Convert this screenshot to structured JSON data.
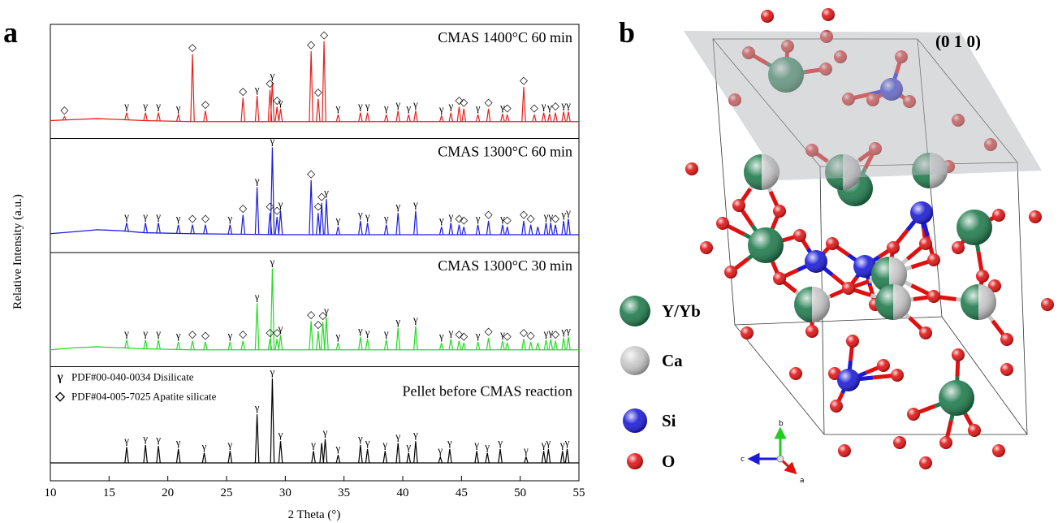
{
  "chart_data": {
    "type": "line",
    "panel_label": "a",
    "x_label": "2 Theta (°)",
    "y_label": "Relative Intensity (a.u.)",
    "xlim": [
      10,
      55
    ],
    "xticks": [
      10,
      15,
      20,
      25,
      30,
      35,
      40,
      45,
      50,
      55
    ],
    "legend": [
      {
        "symbol": "γ",
        "text": "PDF#00-040-0034 Disilicate"
      },
      {
        "symbol": "◇",
        "text": "PDF#04-005-7025 Apatite silicate"
      }
    ],
    "panels": [
      {
        "name": "CMAS 1400°C 60 min",
        "color": "#e8211c",
        "ylim": [
          -10,
          105
        ],
        "background": {
          "x": [
            10,
            12,
            14,
            16,
            18,
            22,
            30,
            40,
            55
          ],
          "values": [
            8,
            9,
            10,
            9,
            8,
            7,
            7,
            7,
            7
          ]
        },
        "peaks": {
          "x": [
            11.2,
            16.5,
            18.1,
            19.2,
            20.9,
            22.1,
            23.2,
            26.4,
            27.6,
            28.7,
            28.9,
            29.3,
            29.6,
            32.2,
            32.8,
            33.3,
            34.5,
            36.4,
            37.0,
            38.6,
            39.6,
            40.5,
            41.1,
            43.3,
            44.1,
            44.8,
            45.2,
            46.4,
            47.3,
            48.5,
            48.9,
            50.3,
            51.2,
            52.0,
            52.5,
            53.0,
            53.7,
            54.1
          ],
          "values": [
            12,
            16,
            16,
            16,
            14,
            75,
            18,
            31,
            33,
            39,
            47,
            22,
            20,
            78,
            30,
            88,
            14,
            16,
            16,
            14,
            18,
            14,
            18,
            13,
            16,
            22,
            20,
            14,
            20,
            15,
            14,
            42,
            14,
            16,
            15,
            16,
            17,
            17
          ]
        },
        "markers": [
          {
            "x": 11.2,
            "label": "◇"
          },
          {
            "x": 16.5,
            "label": "γ"
          },
          {
            "x": 18.1,
            "label": "γ"
          },
          {
            "x": 19.2,
            "label": "γ"
          },
          {
            "x": 20.9,
            "label": "γ"
          },
          {
            "x": 22.1,
            "label": "◇"
          },
          {
            "x": 23.2,
            "label": "◇"
          },
          {
            "x": 26.4,
            "label": "◇"
          },
          {
            "x": 27.6,
            "label": "γ"
          },
          {
            "x": 28.7,
            "label": "◇"
          },
          {
            "x": 28.9,
            "label": "γ"
          },
          {
            "x": 29.3,
            "label": "◇"
          },
          {
            "x": 29.6,
            "label": "γ"
          },
          {
            "x": 32.2,
            "label": "◇"
          },
          {
            "x": 32.8,
            "label": "◇"
          },
          {
            "x": 33.3,
            "label": "◇"
          },
          {
            "x": 34.5,
            "label": "γ"
          },
          {
            "x": 36.4,
            "label": "γ"
          },
          {
            "x": 37.0,
            "label": "γ"
          },
          {
            "x": 38.6,
            "label": "γ"
          },
          {
            "x": 39.6,
            "label": "γ"
          },
          {
            "x": 40.5,
            "label": "γ"
          },
          {
            "x": 41.1,
            "label": "γ"
          },
          {
            "x": 43.3,
            "label": "γ"
          },
          {
            "x": 44.1,
            "label": "γ"
          },
          {
            "x": 44.8,
            "label": "◇"
          },
          {
            "x": 45.2,
            "label": "◇"
          },
          {
            "x": 46.4,
            "label": "γ"
          },
          {
            "x": 47.3,
            "label": "◇"
          },
          {
            "x": 48.5,
            "label": "γ"
          },
          {
            "x": 48.9,
            "label": "◇"
          },
          {
            "x": 50.3,
            "label": "◇"
          },
          {
            "x": 51.2,
            "label": "◇"
          },
          {
            "x": 52.0,
            "label": "γ"
          },
          {
            "x": 52.5,
            "label": "γ"
          },
          {
            "x": 53.0,
            "label": "◇"
          },
          {
            "x": 53.7,
            "label": "γ"
          },
          {
            "x": 54.1,
            "label": "γ"
          }
        ]
      },
      {
        "name": "CMAS 1300°C 60 min",
        "color": "#1c1ce0",
        "ylim": [
          -10,
          105
        ],
        "background": {
          "x": [
            10,
            12,
            14,
            16,
            18,
            22,
            30,
            40,
            55
          ],
          "values": [
            9,
            11,
            13,
            12,
            10,
            9,
            8,
            8,
            8
          ]
        },
        "peaks": {
          "x": [
            16.5,
            18.1,
            19.2,
            20.9,
            22.1,
            23.2,
            25.3,
            26.4,
            27.6,
            28.7,
            28.9,
            29.3,
            29.6,
            32.2,
            32.8,
            33.1,
            33.5,
            34.5,
            36.4,
            37.0,
            38.6,
            39.6,
            41.1,
            43.3,
            44.1,
            44.8,
            45.2,
            46.4,
            47.3,
            48.5,
            48.9,
            50.3,
            50.9,
            51.5,
            52.2,
            52.6,
            53.0,
            53.7,
            54.1
          ],
          "values": [
            20,
            20,
            20,
            18,
            18,
            18,
            18,
            28,
            56,
            30,
            96,
            26,
            32,
            63,
            30,
            40,
            44,
            16,
            22,
            20,
            18,
            30,
            32,
            16,
            20,
            18,
            16,
            18,
            22,
            18,
            16,
            22,
            18,
            16,
            20,
            20,
            18,
            22,
            24
          ]
        },
        "markers": [
          {
            "x": 16.5,
            "label": "γ"
          },
          {
            "x": 18.1,
            "label": "γ"
          },
          {
            "x": 19.2,
            "label": "γ"
          },
          {
            "x": 20.9,
            "label": "γ"
          },
          {
            "x": 22.1,
            "label": "◇"
          },
          {
            "x": 23.2,
            "label": "◇"
          },
          {
            "x": 25.3,
            "label": "γ"
          },
          {
            "x": 26.4,
            "label": "◇"
          },
          {
            "x": 27.6,
            "label": "γ"
          },
          {
            "x": 28.7,
            "label": "◇"
          },
          {
            "x": 28.9,
            "label": "γ"
          },
          {
            "x": 29.3,
            "label": "◇"
          },
          {
            "x": 29.6,
            "label": "γ"
          },
          {
            "x": 32.2,
            "label": "◇"
          },
          {
            "x": 32.8,
            "label": "◇"
          },
          {
            "x": 33.1,
            "label": "◇"
          },
          {
            "x": 33.5,
            "label": "γ"
          },
          {
            "x": 34.5,
            "label": "γ"
          },
          {
            "x": 36.4,
            "label": "γ"
          },
          {
            "x": 37.0,
            "label": "γ"
          },
          {
            "x": 38.6,
            "label": "γ"
          },
          {
            "x": 39.6,
            "label": "γ"
          },
          {
            "x": 41.1,
            "label": "γ"
          },
          {
            "x": 43.3,
            "label": "γ"
          },
          {
            "x": 44.1,
            "label": "γ"
          },
          {
            "x": 44.8,
            "label": "◇"
          },
          {
            "x": 45.2,
            "label": "◇"
          },
          {
            "x": 46.4,
            "label": "γ"
          },
          {
            "x": 47.3,
            "label": "◇"
          },
          {
            "x": 48.5,
            "label": "γ"
          },
          {
            "x": 48.9,
            "label": "◇"
          },
          {
            "x": 50.3,
            "label": "◇"
          },
          {
            "x": 50.9,
            "label": "◇"
          },
          {
            "x": 52.2,
            "label": "γ"
          },
          {
            "x": 52.6,
            "label": "γ"
          },
          {
            "x": 53.0,
            "label": "◇"
          },
          {
            "x": 53.7,
            "label": "γ"
          },
          {
            "x": 54.1,
            "label": "γ"
          }
        ]
      },
      {
        "name": "CMAS 1300°C 30 min",
        "color": "#22dd22",
        "ylim": [
          -10,
          105
        ],
        "background": {
          "x": [
            10,
            12,
            14,
            16,
            18,
            22,
            30,
            40,
            55
          ],
          "values": [
            7,
            9,
            10,
            9,
            8,
            7,
            7,
            7,
            7
          ]
        },
        "peaks": {
          "x": [
            16.5,
            18.1,
            19.2,
            20.9,
            22.1,
            23.2,
            25.3,
            26.4,
            27.6,
            28.7,
            28.9,
            29.3,
            29.6,
            32.2,
            32.8,
            33.2,
            33.5,
            34.5,
            36.4,
            37.0,
            38.6,
            39.6,
            41.1,
            43.3,
            44.1,
            44.8,
            45.2,
            46.4,
            47.3,
            48.5,
            48.9,
            50.3,
            50.9,
            51.5,
            52.2,
            52.6,
            53.0,
            53.7,
            54.1
          ],
          "values": [
            17,
            17,
            17,
            15,
            16,
            15,
            15,
            16,
            54,
            18,
            89,
            18,
            22,
            36,
            26,
            35,
            40,
            14,
            20,
            18,
            17,
            29,
            31,
            14,
            18,
            16,
            14,
            15,
            19,
            16,
            14,
            18,
            15,
            14,
            17,
            18,
            16,
            19,
            20
          ]
        },
        "markers": [
          {
            "x": 16.5,
            "label": "γ"
          },
          {
            "x": 18.1,
            "label": "γ"
          },
          {
            "x": 19.2,
            "label": "γ"
          },
          {
            "x": 20.9,
            "label": "γ"
          },
          {
            "x": 22.1,
            "label": "◇"
          },
          {
            "x": 23.2,
            "label": "◇"
          },
          {
            "x": 25.3,
            "label": "γ"
          },
          {
            "x": 26.4,
            "label": "◇"
          },
          {
            "x": 27.6,
            "label": "γ"
          },
          {
            "x": 28.7,
            "label": "◇"
          },
          {
            "x": 28.9,
            "label": "γ"
          },
          {
            "x": 29.3,
            "label": "◇"
          },
          {
            "x": 29.6,
            "label": "γ"
          },
          {
            "x": 32.2,
            "label": "◇"
          },
          {
            "x": 32.8,
            "label": "◇"
          },
          {
            "x": 33.2,
            "label": "◇"
          },
          {
            "x": 33.5,
            "label": "γ"
          },
          {
            "x": 34.5,
            "label": "γ"
          },
          {
            "x": 36.4,
            "label": "γ"
          },
          {
            "x": 37.0,
            "label": "γ"
          },
          {
            "x": 38.6,
            "label": "γ"
          },
          {
            "x": 39.6,
            "label": "γ"
          },
          {
            "x": 41.1,
            "label": "γ"
          },
          {
            "x": 43.3,
            "label": "γ"
          },
          {
            "x": 44.1,
            "label": "γ"
          },
          {
            "x": 44.8,
            "label": "◇"
          },
          {
            "x": 45.2,
            "label": "◇"
          },
          {
            "x": 46.4,
            "label": "γ"
          },
          {
            "x": 47.3,
            "label": "◇"
          },
          {
            "x": 48.5,
            "label": "γ"
          },
          {
            "x": 48.9,
            "label": "◇"
          },
          {
            "x": 50.3,
            "label": "◇"
          },
          {
            "x": 50.9,
            "label": "◇"
          },
          {
            "x": 52.2,
            "label": "γ"
          },
          {
            "x": 52.6,
            "label": "γ"
          },
          {
            "x": 53.0,
            "label": "◇"
          },
          {
            "x": 53.7,
            "label": "γ"
          },
          {
            "x": 54.1,
            "label": "γ"
          }
        ]
      },
      {
        "name": "Pellet before CMAS reaction",
        "color": "#000000",
        "ylim": [
          -10,
          105
        ],
        "background": {
          "x": [
            10,
            20,
            30,
            40,
            55
          ],
          "values": [
            8,
            8,
            8,
            8,
            8
          ]
        },
        "peaks": {
          "x": [
            16.5,
            18.1,
            19.2,
            20.9,
            23.1,
            25.3,
            27.6,
            28.9,
            29.6,
            32.4,
            33.1,
            33.4,
            34.5,
            36.4,
            37.0,
            38.5,
            39.6,
            40.5,
            41.1,
            43.2,
            44.0,
            46.3,
            47.2,
            48.3,
            50.5,
            52.0,
            52.4,
            53.6,
            54.0
          ],
          "values": [
            24,
            26,
            25,
            22,
            18,
            20,
            57,
            93,
            30,
            20,
            28,
            32,
            16,
            26,
            22,
            20,
            28,
            18,
            30,
            14,
            22,
            20,
            18,
            22,
            14,
            20,
            22,
            20,
            22
          ]
        },
        "markers": [
          {
            "x": 16.5,
            "label": "γ"
          },
          {
            "x": 18.1,
            "label": "γ"
          },
          {
            "x": 19.2,
            "label": "γ"
          },
          {
            "x": 20.9,
            "label": "γ"
          },
          {
            "x": 23.1,
            "label": "γ"
          },
          {
            "x": 25.3,
            "label": "γ"
          },
          {
            "x": 27.6,
            "label": "γ"
          },
          {
            "x": 28.9,
            "label": "γ"
          },
          {
            "x": 29.6,
            "label": "γ"
          },
          {
            "x": 32.4,
            "label": "γ"
          },
          {
            "x": 33.4,
            "label": "γ"
          },
          {
            "x": 34.5,
            "label": "γ"
          },
          {
            "x": 36.4,
            "label": "γ"
          },
          {
            "x": 37.0,
            "label": "γ"
          },
          {
            "x": 38.5,
            "label": "γ"
          },
          {
            "x": 39.6,
            "label": "γ"
          },
          {
            "x": 40.5,
            "label": "γ"
          },
          {
            "x": 41.1,
            "label": "γ"
          },
          {
            "x": 43.2,
            "label": "γ"
          },
          {
            "x": 44.0,
            "label": "γ"
          },
          {
            "x": 46.3,
            "label": "γ"
          },
          {
            "x": 47.2,
            "label": "γ"
          },
          {
            "x": 48.3,
            "label": "γ"
          },
          {
            "x": 50.5,
            "label": "γ"
          },
          {
            "x": 52.0,
            "label": "γ"
          },
          {
            "x": 52.4,
            "label": "γ"
          },
          {
            "x": 53.6,
            "label": "γ"
          },
          {
            "x": 54.0,
            "label": "γ"
          }
        ]
      }
    ]
  },
  "structure": {
    "panel_label": "b",
    "plane_label": "(0 1 0)",
    "legend": [
      {
        "label": "Y/Yb",
        "color": "#1e7a4c"
      },
      {
        "label": "Ca",
        "color": "#c8c8c8"
      },
      {
        "label": "Si",
        "color": "#1a1ad8"
      },
      {
        "label": "O",
        "color": "#e01010"
      }
    ],
    "axes": [
      "b",
      "c",
      "a"
    ]
  }
}
